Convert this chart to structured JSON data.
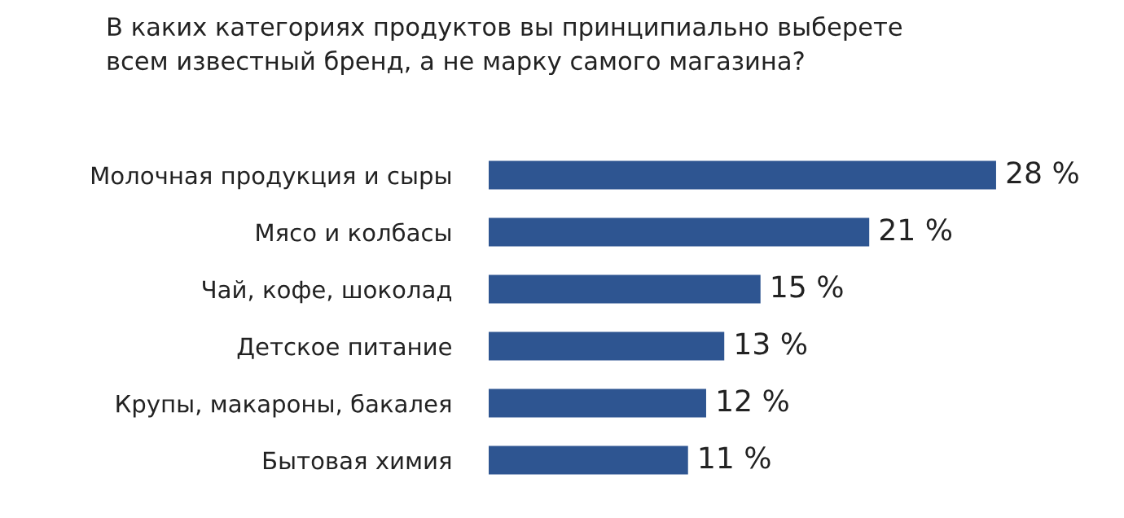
{
  "chart_data": {
    "type": "bar",
    "orientation": "horizontal",
    "title": "В каких категориях продуктов вы принципиально выберете\nвсем известный бренд, а не марку самого магазина?",
    "categories": [
      "Молочная продукция и сыры",
      "Мясо и колбасы",
      "Чай, кофе, шоколад",
      "Детское питание",
      "Крупы, макароны, бакалея",
      "Бытовая химия"
    ],
    "values": [
      28,
      21,
      15,
      13,
      12,
      11
    ],
    "value_labels": [
      "28 %",
      "21 %",
      "15 %",
      "13 %",
      "12 %",
      "11 %"
    ],
    "color": "#2e5591",
    "grid": false,
    "legend": false
  }
}
